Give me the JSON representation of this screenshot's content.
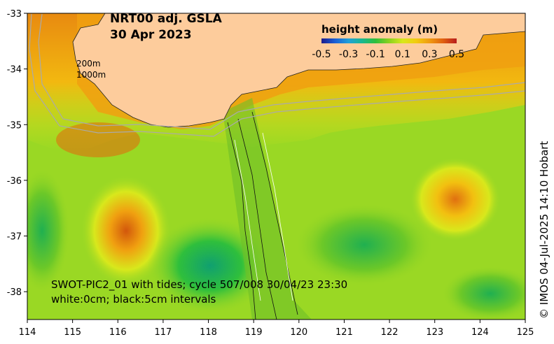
{
  "title": {
    "line1": "NRT00 adj. GSLA",
    "line2": "30 Apr 2023"
  },
  "colorbar": {
    "label": "height anomaly (m)",
    "ticks": [
      "-0.5",
      "-0.3",
      "-0.1",
      "0.1",
      "0.3",
      "0.5"
    ],
    "range": [
      -0.5,
      0.5
    ],
    "colors": [
      "#1c1c8c",
      "#1a5fd6",
      "#20a0d8",
      "#19b890",
      "#2fbf3c",
      "#8ad21e",
      "#d8e81c",
      "#f2cc10",
      "#f09a10",
      "#e06010",
      "#b81c1c"
    ]
  },
  "depth_labels": [
    "200m",
    "1000m"
  ],
  "swath_note": {
    "line1": "SWOT-PIC2_01 with tides; cycle 507/008  30/04/23 23:30",
    "line2": "white:0cm; black:5cm intervals"
  },
  "credit": "© IMOS 04-Jul-2025 14:10 Hobart",
  "axes": {
    "x_ticks": [
      "114",
      "115",
      "116",
      "117",
      "118",
      "119",
      "120",
      "121",
      "122",
      "123",
      "124",
      "125"
    ],
    "y_ticks": [
      "-33",
      "-34",
      "-35",
      "-36",
      "-37",
      "-38"
    ],
    "x_range": [
      114,
      125
    ],
    "y_range": [
      -38.5,
      -33
    ]
  },
  "colors": {
    "land": "#fdcc9c",
    "sea_mid": "#9ad824",
    "sea_high": "#f0a010",
    "sea_low": "#22b860",
    "isobath": "#aaaaaa"
  }
}
